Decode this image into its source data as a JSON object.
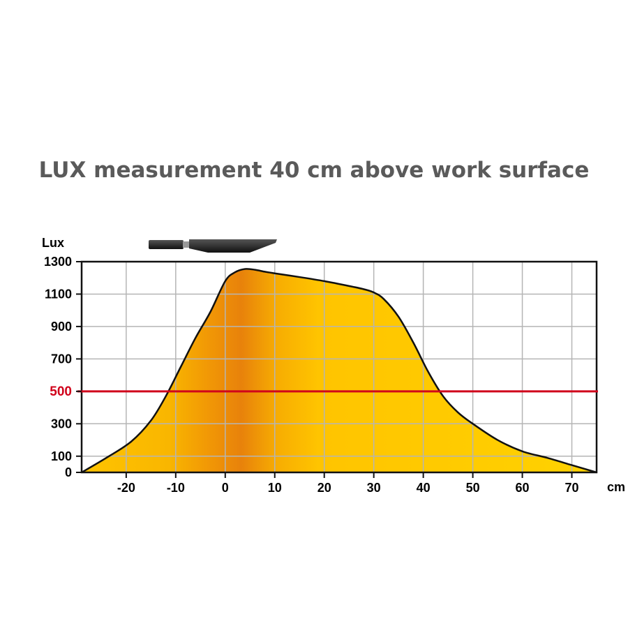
{
  "chart_data": {
    "type": "area",
    "title": "LUX measurement 40 cm above work surface",
    "ylabel": "Lux",
    "xlabel": "cm",
    "xlim": [
      -29,
      75
    ],
    "ylim": [
      0,
      1300
    ],
    "x_ticks": [
      -20,
      -10,
      0,
      10,
      20,
      30,
      40,
      50,
      60,
      70
    ],
    "y_ticks": [
      0,
      100,
      300,
      500,
      700,
      900,
      1100,
      1300
    ],
    "grid": true,
    "reference_line": {
      "value": 500,
      "label": "500",
      "color": "#d0021b"
    },
    "series": [
      {
        "x": [
          -29,
          -24,
          -19,
          -15,
          -12,
          -9,
          -6,
          -3,
          0,
          2,
          4,
          6,
          8,
          10,
          15,
          20,
          25,
          28,
          30,
          32,
          35,
          38,
          41,
          44,
          47,
          50,
          55,
          60,
          65,
          70,
          75
        ],
        "values": [
          0,
          90,
          190,
          320,
          470,
          650,
          830,
          990,
          1180,
          1235,
          1255,
          1250,
          1238,
          1228,
          1205,
          1180,
          1150,
          1130,
          1110,
          1070,
          960,
          800,
          620,
          470,
          370,
          300,
          200,
          130,
          90,
          45,
          0
        ],
        "fill": "#ffc400",
        "peak_fill": "#e8830a"
      }
    ],
    "lamp_icon": "desk-lamp-head-icon"
  }
}
